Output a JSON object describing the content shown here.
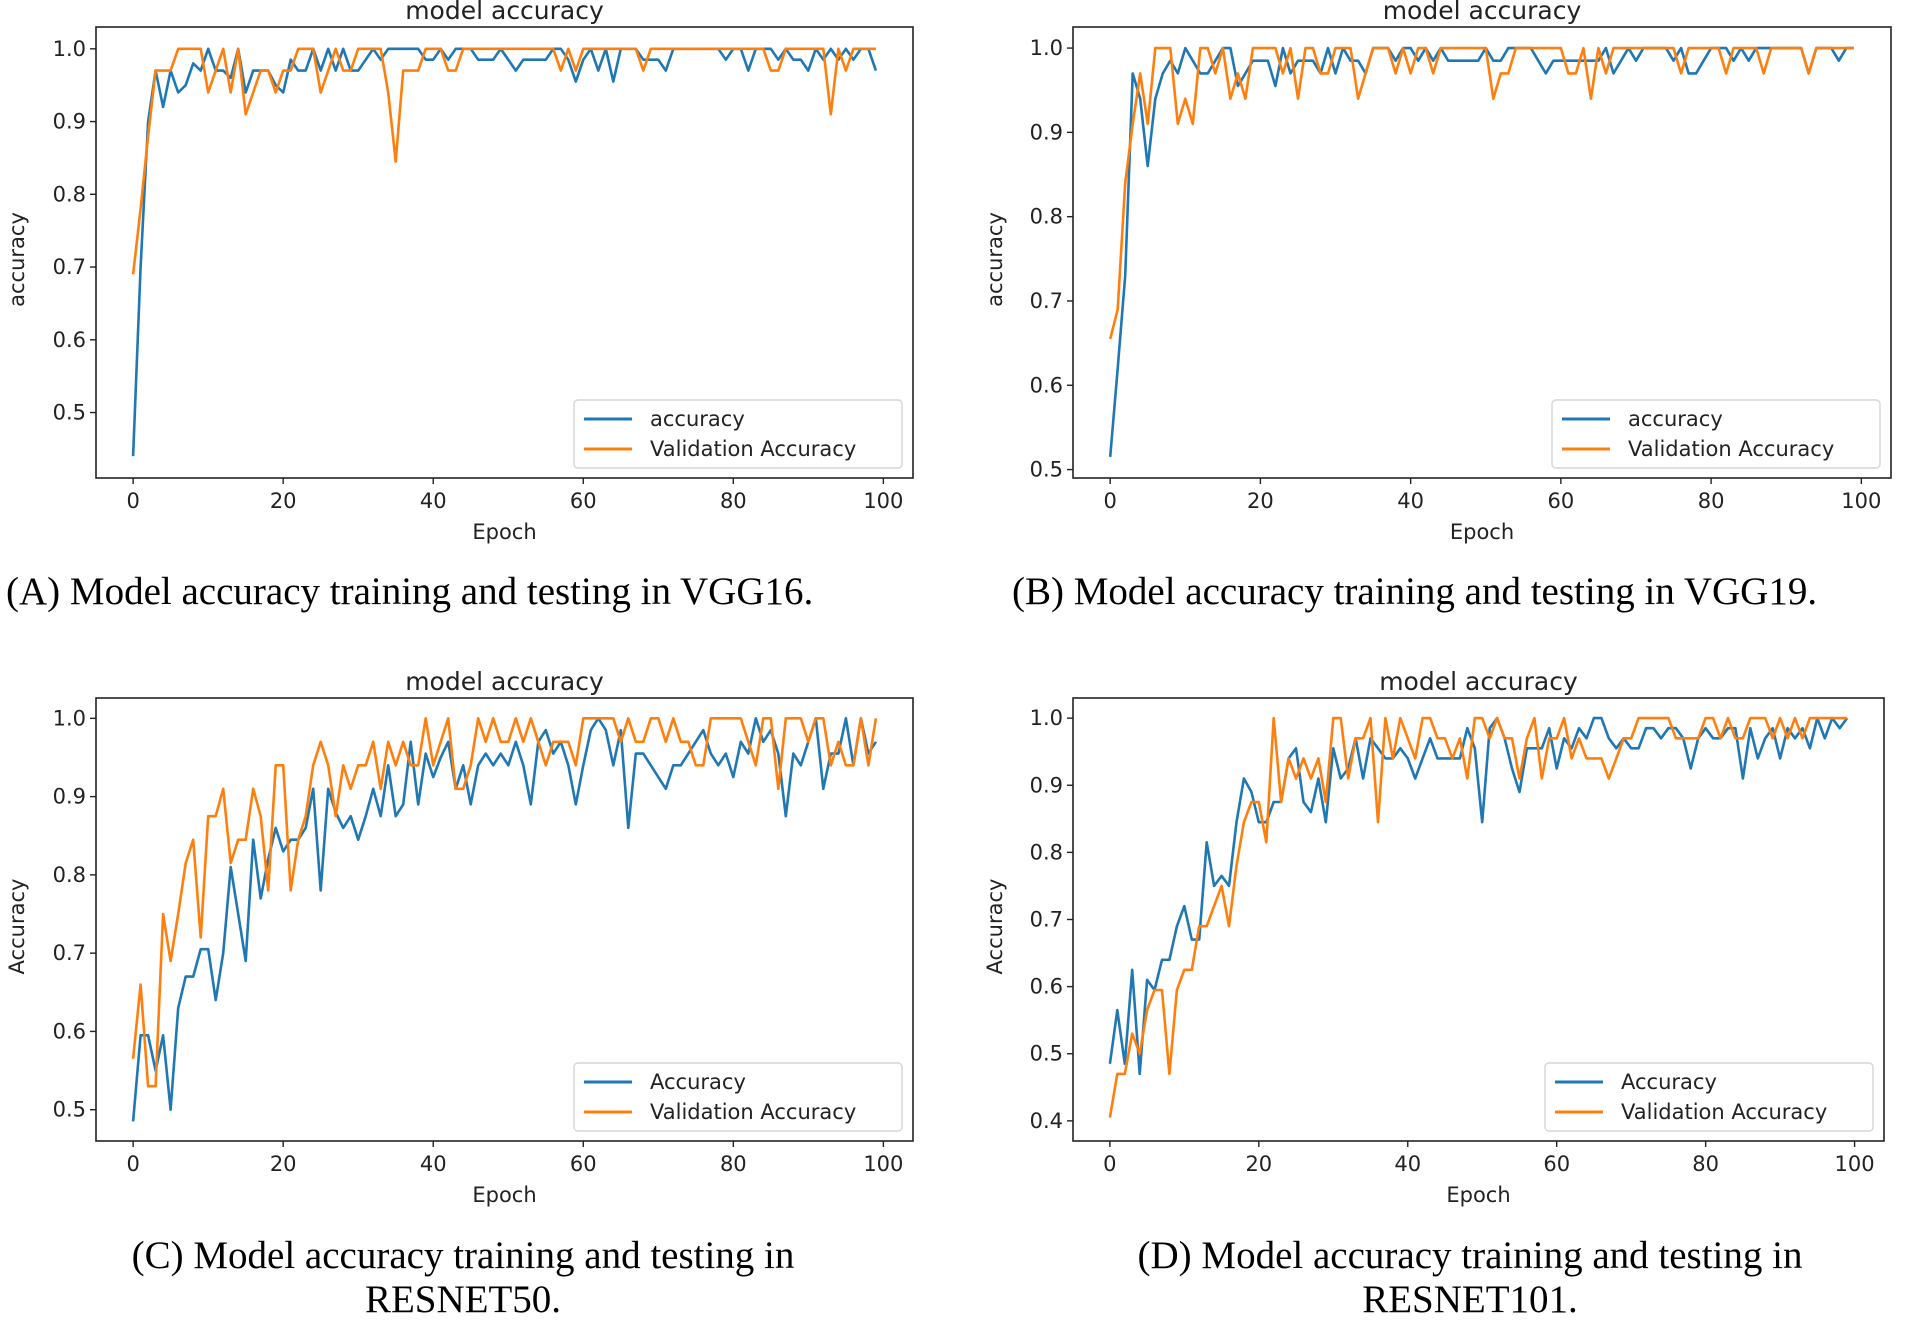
{
  "captions": {
    "a": "(A) Model accuracy training and testing in VGG16.",
    "b": "(B) Model accuracy training and testing in VGG19.",
    "c_line1": "(C)  Model accuracy training and testing in",
    "c_line2": "RESNET50.",
    "d_line1": "(D) Model accuracy training and testing in",
    "d_line2": "RESNET101."
  },
  "colors": {
    "train": "#1f77b4",
    "validation": "#ff7f0e"
  },
  "chart_data": [
    {
      "type": "line",
      "title": "model accuracy",
      "xlabel": "Epoch",
      "ylabel": "accuracy",
      "xlim": [
        -4.95,
        103.95
      ],
      "ylim": [
        0.41,
        1.03
      ],
      "grid": false,
      "legend": "lower right",
      "xticks": [
        0,
        20,
        40,
        60,
        80,
        100
      ],
      "yticks": [
        "0.5",
        "0.6",
        "0.7",
        "0.8",
        "0.9",
        "1.0"
      ],
      "series": [
        {
          "name": "accuracy",
          "values": [
            0.44,
            0.7,
            0.9,
            0.97,
            0.92,
            0.97,
            0.94,
            0.95,
            0.98,
            0.97,
            1.0,
            0.97,
            0.97,
            0.96,
            1.0,
            0.94,
            0.97,
            0.97,
            0.97,
            0.95,
            0.94,
            0.985,
            0.97,
            0.97,
            1.0,
            0.97,
            1.0,
            0.97,
            1.0,
            0.97,
            0.97,
            0.985,
            1.0,
            0.985,
            1.0,
            1.0,
            1.0,
            1.0,
            1.0,
            0.985,
            0.985,
            1.0,
            0.985,
            1.0,
            1.0,
            1.0,
            0.985,
            0.985,
            0.985,
            1.0,
            0.985,
            0.97,
            0.985,
            0.985,
            0.985,
            0.985,
            1.0,
            1.0,
            0.985,
            0.955,
            0.985,
            1.0,
            0.97,
            1.0,
            0.955,
            1.0,
            1.0,
            1.0,
            0.985,
            0.985,
            0.985,
            0.97,
            1.0,
            1.0,
            1.0,
            1.0,
            1.0,
            1.0,
            1.0,
            0.985,
            1.0,
            1.0,
            0.97,
            1.0,
            1.0,
            1.0,
            0.985,
            1.0,
            0.985,
            0.985,
            0.97,
            1.0,
            0.985,
            1.0,
            0.985,
            1.0,
            0.985,
            1.0,
            1.0,
            0.97
          ]
        },
        {
          "name": "Validation Accuracy",
          "values": [
            0.69,
            0.78,
            0.88,
            0.97,
            0.97,
            0.97,
            1.0,
            1.0,
            1.0,
            1.0,
            0.94,
            0.97,
            1.0,
            0.94,
            1.0,
            0.91,
            0.94,
            0.97,
            0.97,
            0.94,
            0.97,
            0.97,
            1.0,
            1.0,
            1.0,
            0.94,
            0.97,
            1.0,
            0.97,
            0.97,
            1.0,
            1.0,
            1.0,
            1.0,
            0.94,
            0.845,
            0.97,
            0.97,
            0.97,
            1.0,
            1.0,
            1.0,
            0.97,
            0.97,
            1.0,
            1.0,
            1.0,
            1.0,
            1.0,
            1.0,
            1.0,
            1.0,
            1.0,
            1.0,
            1.0,
            1.0,
            1.0,
            0.97,
            1.0,
            0.97,
            1.0,
            1.0,
            1.0,
            1.0,
            1.0,
            1.0,
            1.0,
            1.0,
            0.97,
            1.0,
            1.0,
            1.0,
            1.0,
            1.0,
            1.0,
            1.0,
            1.0,
            1.0,
            1.0,
            1.0,
            1.0,
            1.0,
            1.0,
            1.0,
            1.0,
            0.97,
            0.97,
            1.0,
            1.0,
            1.0,
            1.0,
            1.0,
            1.0,
            0.91,
            1.0,
            0.97,
            1.0,
            1.0,
            1.0,
            1.0
          ]
        }
      ]
    },
    {
      "type": "line",
      "title": "model accuracy",
      "xlabel": "Epoch",
      "ylabel": "accuracy",
      "xlim": [
        -4.95,
        103.95
      ],
      "ylim": [
        0.49,
        1.025
      ],
      "grid": false,
      "legend": "lower right",
      "xticks": [
        0,
        20,
        40,
        60,
        80,
        100
      ],
      "yticks": [
        "0.5",
        "0.6",
        "0.7",
        "0.8",
        "0.9",
        "1.0"
      ],
      "series": [
        {
          "name": "accuracy",
          "values": [
            0.515,
            0.62,
            0.73,
            0.97,
            0.94,
            0.86,
            0.94,
            0.97,
            0.985,
            0.97,
            1.0,
            0.985,
            0.97,
            0.97,
            0.985,
            1.0,
            1.0,
            0.955,
            0.97,
            0.985,
            0.985,
            0.985,
            0.955,
            1.0,
            0.97,
            0.985,
            0.985,
            0.985,
            0.97,
            1.0,
            0.97,
            1.0,
            0.985,
            0.985,
            0.97,
            1.0,
            1.0,
            1.0,
            0.985,
            1.0,
            1.0,
            0.985,
            1.0,
            0.985,
            1.0,
            0.985,
            0.985,
            0.985,
            0.985,
            0.985,
            1.0,
            0.985,
            0.985,
            1.0,
            1.0,
            1.0,
            1.0,
            0.985,
            0.97,
            0.985,
            0.985,
            0.985,
            0.985,
            0.985,
            0.985,
            0.985,
            1.0,
            0.97,
            0.985,
            1.0,
            0.985,
            1.0,
            1.0,
            1.0,
            1.0,
            0.985,
            1.0,
            0.97,
            0.97,
            0.985,
            1.0,
            1.0,
            1.0,
            0.985,
            1.0,
            0.985,
            1.0,
            1.0,
            1.0,
            1.0,
            1.0,
            1.0,
            1.0,
            0.97,
            1.0,
            1.0,
            1.0,
            0.985,
            1.0,
            1.0
          ]
        },
        {
          "name": "Validation Accuracy",
          "values": [
            0.655,
            0.69,
            0.84,
            0.91,
            0.97,
            0.91,
            1.0,
            1.0,
            1.0,
            0.91,
            0.94,
            0.91,
            1.0,
            1.0,
            0.97,
            1.0,
            0.94,
            0.97,
            0.94,
            1.0,
            1.0,
            1.0,
            1.0,
            0.97,
            1.0,
            0.94,
            1.0,
            1.0,
            0.97,
            0.97,
            1.0,
            1.0,
            1.0,
            0.94,
            0.97,
            1.0,
            1.0,
            1.0,
            0.97,
            1.0,
            0.97,
            1.0,
            1.0,
            0.97,
            1.0,
            1.0,
            1.0,
            1.0,
            1.0,
            1.0,
            1.0,
            0.94,
            0.97,
            0.97,
            1.0,
            1.0,
            1.0,
            1.0,
            1.0,
            1.0,
            1.0,
            0.97,
            0.97,
            1.0,
            0.94,
            1.0,
            0.97,
            1.0,
            1.0,
            1.0,
            1.0,
            1.0,
            1.0,
            1.0,
            1.0,
            1.0,
            0.97,
            1.0,
            1.0,
            1.0,
            1.0,
            1.0,
            0.97,
            1.0,
            1.0,
            1.0,
            1.0,
            0.97,
            1.0,
            1.0,
            1.0,
            1.0,
            1.0,
            0.97,
            1.0,
            1.0,
            1.0,
            1.0,
            1.0,
            1.0
          ]
        }
      ]
    },
    {
      "type": "line",
      "title": "model accuracy",
      "xlabel": "Epoch",
      "ylabel": "Accuracy",
      "xlim": [
        -4.95,
        103.95
      ],
      "ylim": [
        0.46,
        1.026
      ],
      "grid": false,
      "legend": "lower right",
      "xticks": [
        0,
        20,
        40,
        60,
        80,
        100
      ],
      "yticks": [
        "0.5",
        "0.6",
        "0.7",
        "0.8",
        "0.9",
        "1.0"
      ],
      "series": [
        {
          "name": "Accuracy",
          "values": [
            0.485,
            0.595,
            0.595,
            0.55,
            0.595,
            0.5,
            0.63,
            0.67,
            0.67,
            0.705,
            0.705,
            0.64,
            0.7,
            0.81,
            0.75,
            0.69,
            0.845,
            0.77,
            0.82,
            0.86,
            0.83,
            0.845,
            0.845,
            0.86,
            0.91,
            0.78,
            0.91,
            0.88,
            0.86,
            0.875,
            0.845,
            0.875,
            0.91,
            0.875,
            0.94,
            0.875,
            0.89,
            0.97,
            0.89,
            0.955,
            0.925,
            0.95,
            0.97,
            0.91,
            0.94,
            0.89,
            0.94,
            0.955,
            0.94,
            0.955,
            0.94,
            0.97,
            0.94,
            0.89,
            0.97,
            0.985,
            0.955,
            0.97,
            0.94,
            0.89,
            0.94,
            0.985,
            1.0,
            0.985,
            0.94,
            0.985,
            0.86,
            0.955,
            0.955,
            0.94,
            0.925,
            0.91,
            0.94,
            0.94,
            0.955,
            0.97,
            0.985,
            0.955,
            0.94,
            0.955,
            0.925,
            0.97,
            0.955,
            1.0,
            0.97,
            0.985,
            0.955,
            0.875,
            0.955,
            0.94,
            0.97,
            1.0,
            0.91,
            0.955,
            0.955,
            1.0,
            0.94,
            1.0,
            0.955,
            0.97
          ]
        },
        {
          "name": "Validation Accuracy",
          "values": [
            0.565,
            0.66,
            0.53,
            0.53,
            0.75,
            0.69,
            0.75,
            0.815,
            0.845,
            0.72,
            0.875,
            0.875,
            0.91,
            0.815,
            0.845,
            0.845,
            0.91,
            0.875,
            0.78,
            0.94,
            0.94,
            0.78,
            0.845,
            0.875,
            0.94,
            0.97,
            0.94,
            0.875,
            0.94,
            0.91,
            0.94,
            0.94,
            0.97,
            0.91,
            0.97,
            0.94,
            0.97,
            0.94,
            0.94,
            1.0,
            0.94,
            0.97,
            1.0,
            0.91,
            0.91,
            0.94,
            1.0,
            0.97,
            1.0,
            0.97,
            0.97,
            1.0,
            0.97,
            1.0,
            0.97,
            0.94,
            0.97,
            0.97,
            0.97,
            0.94,
            1.0,
            1.0,
            1.0,
            1.0,
            1.0,
            0.97,
            1.0,
            0.97,
            0.97,
            1.0,
            1.0,
            0.97,
            1.0,
            0.97,
            0.97,
            0.94,
            0.94,
            1.0,
            1.0,
            1.0,
            1.0,
            1.0,
            0.97,
            0.94,
            1.0,
            1.0,
            0.91,
            1.0,
            1.0,
            1.0,
            0.97,
            1.0,
            1.0,
            0.94,
            0.97,
            0.94,
            0.94,
            1.0,
            0.94,
            1.0
          ]
        }
      ]
    },
    {
      "type": "line",
      "title": "model accuracy",
      "xlabel": "Epoch",
      "ylabel": "Accuracy",
      "xlim": [
        -4.95,
        103.95
      ],
      "ylim": [
        0.37,
        1.03
      ],
      "grid": false,
      "legend": "lower right",
      "xticks": [
        0,
        20,
        40,
        60,
        80,
        100
      ],
      "yticks": [
        "0.4",
        "0.5",
        "0.6",
        "0.7",
        "0.8",
        "0.9",
        "1.0"
      ],
      "series": [
        {
          "name": "Accuracy",
          "values": [
            0.485,
            0.565,
            0.485,
            0.625,
            0.47,
            0.61,
            0.595,
            0.64,
            0.64,
            0.69,
            0.72,
            0.67,
            0.67,
            0.815,
            0.75,
            0.765,
            0.75,
            0.845,
            0.91,
            0.89,
            0.845,
            0.845,
            0.875,
            0.875,
            0.94,
            0.955,
            0.875,
            0.86,
            0.91,
            0.845,
            0.955,
            0.91,
            0.925,
            0.97,
            0.91,
            0.97,
            0.955,
            0.94,
            0.94,
            0.955,
            0.94,
            0.91,
            0.94,
            0.97,
            0.94,
            0.94,
            0.94,
            0.94,
            0.985,
            0.955,
            0.845,
            0.985,
            1.0,
            0.97,
            0.925,
            0.89,
            0.955,
            0.955,
            0.955,
            0.985,
            0.925,
            0.97,
            0.955,
            0.985,
            0.97,
            1.0,
            1.0,
            0.97,
            0.955,
            0.97,
            0.955,
            0.955,
            0.985,
            0.985,
            0.97,
            0.985,
            0.985,
            0.97,
            0.925,
            0.97,
            0.985,
            0.97,
            0.97,
            0.985,
            0.985,
            0.91,
            0.985,
            0.94,
            0.97,
            0.985,
            0.94,
            0.985,
            0.97,
            0.985,
            0.955,
            1.0,
            0.97,
            1.0,
            0.985,
            1.0
          ]
        },
        {
          "name": "Validation Accuracy",
          "values": [
            0.405,
            0.47,
            0.47,
            0.53,
            0.5,
            0.565,
            0.595,
            0.595,
            0.47,
            0.595,
            0.625,
            0.625,
            0.69,
            0.69,
            0.72,
            0.75,
            0.69,
            0.78,
            0.845,
            0.875,
            0.875,
            0.815,
            1.0,
            0.875,
            0.94,
            0.91,
            0.94,
            0.91,
            0.94,
            0.875,
            1.0,
            1.0,
            0.91,
            0.97,
            0.97,
            1.0,
            0.845,
            1.0,
            0.94,
            1.0,
            0.97,
            0.94,
            1.0,
            1.0,
            0.97,
            0.97,
            0.94,
            0.97,
            0.91,
            1.0,
            1.0,
            0.97,
            1.0,
            0.97,
            0.97,
            0.91,
            0.97,
            1.0,
            0.91,
            0.97,
            0.97,
            1.0,
            0.94,
            0.97,
            0.94,
            0.94,
            0.94,
            0.91,
            0.94,
            0.97,
            0.97,
            1.0,
            1.0,
            1.0,
            1.0,
            1.0,
            0.97,
            0.97,
            0.97,
            0.97,
            1.0,
            1.0,
            0.97,
            1.0,
            0.97,
            0.97,
            1.0,
            1.0,
            1.0,
            0.97,
            1.0,
            0.97,
            1.0,
            0.97,
            1.0,
            1.0,
            1.0,
            1.0,
            1.0,
            1.0
          ]
        }
      ]
    }
  ]
}
